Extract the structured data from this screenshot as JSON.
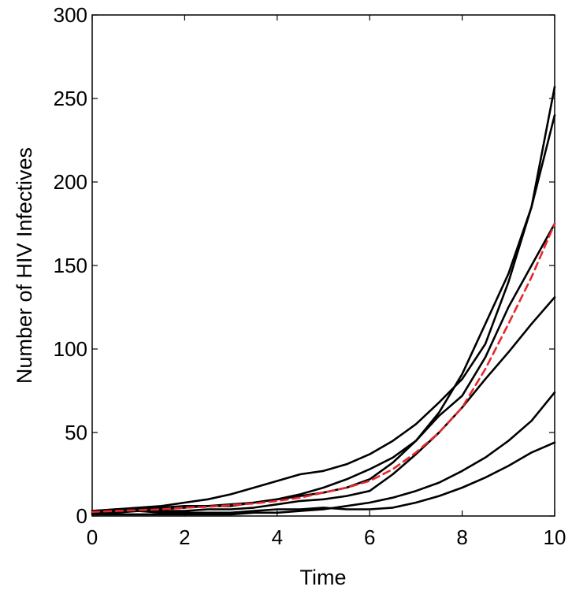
{
  "chart_data": {
    "type": "line",
    "title": "",
    "xlabel": "Time",
    "ylabel": "Number of HIV Infectives",
    "xlim": [
      0,
      10
    ],
    "ylim": [
      0,
      300
    ],
    "xticks": [
      0,
      2,
      4,
      6,
      8,
      10
    ],
    "yticks": [
      0,
      50,
      100,
      150,
      200,
      250,
      300
    ],
    "grid": false,
    "legend": "none",
    "x": [
      0,
      0.5,
      1,
      1.5,
      2,
      2.5,
      3,
      3.5,
      4,
      4.5,
      5,
      5.5,
      6,
      6.5,
      7,
      7.5,
      8,
      8.5,
      9,
      9.5,
      10
    ],
    "series": [
      {
        "style": "solid",
        "color": "#000000",
        "values": [
          3,
          4,
          5,
          6,
          8,
          10,
          13,
          17,
          21,
          25,
          27,
          31,
          37,
          45,
          55,
          68,
          82,
          103,
          140,
          185,
          257
        ]
      },
      {
        "style": "solid",
        "color": "#000000",
        "values": [
          3,
          4,
          4,
          5,
          6,
          6,
          7,
          8,
          10,
          13,
          17,
          22,
          28,
          35,
          45,
          62,
          85,
          115,
          145,
          185,
          240
        ]
      },
      {
        "style": "solid",
        "color": "#000000",
        "values": [
          2,
          3,
          3,
          4,
          5,
          6,
          6,
          8,
          10,
          12,
          14,
          17,
          22,
          32,
          45,
          60,
          72,
          95,
          125,
          150,
          175
        ]
      },
      {
        "style": "solid",
        "color": "#000000",
        "values": [
          2,
          2,
          3,
          3,
          3,
          4,
          4,
          5,
          7,
          9,
          10,
          12,
          15,
          25,
          37,
          50,
          65,
          82,
          98,
          115,
          131
        ]
      },
      {
        "style": "solid",
        "color": "#000000",
        "values": [
          1,
          1,
          1,
          1,
          1,
          1,
          1,
          2,
          2,
          3,
          4,
          6,
          8,
          11,
          15,
          20,
          27,
          35,
          45,
          57,
          74
        ]
      },
      {
        "style": "solid",
        "color": "#000000",
        "values": [
          3,
          3,
          3,
          2,
          2,
          2,
          2,
          3,
          4,
          4,
          5,
          4,
          4,
          5,
          8,
          12,
          17,
          23,
          30,
          38,
          44
        ]
      },
      {
        "style": "dashed",
        "color": "#e8262b",
        "values": [
          2.5,
          3,
          3.5,
          4,
          5,
          5.5,
          6.5,
          7.5,
          9,
          11,
          14,
          17,
          21,
          28,
          38,
          50,
          65,
          88,
          115,
          143,
          175
        ]
      }
    ]
  }
}
